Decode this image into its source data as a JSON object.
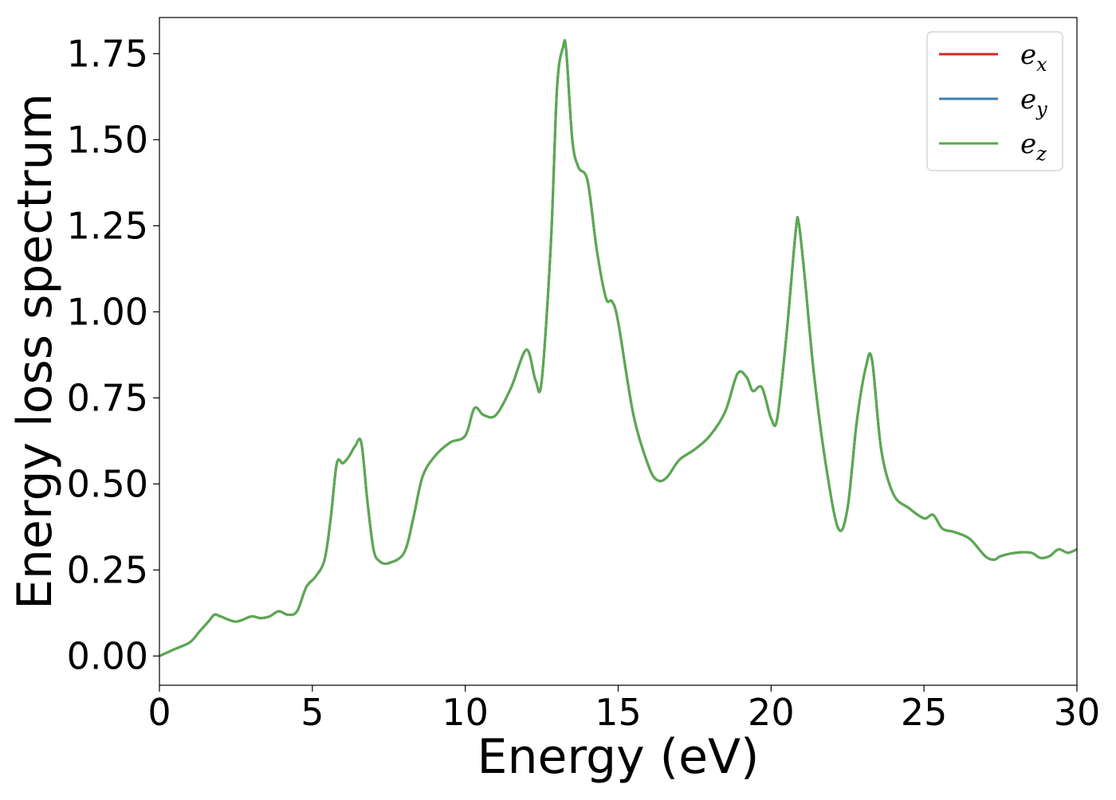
{
  "chart_data": {
    "type": "line",
    "title": "",
    "xlabel": "Energy (eV)",
    "ylabel": "Energy loss spectrum",
    "xlim": [
      0,
      30
    ],
    "ylim": [
      -0.085,
      1.855
    ],
    "xticks": [
      0,
      5,
      10,
      15,
      20,
      25,
      30
    ],
    "xtick_labels": [
      "0",
      "5",
      "10",
      "15",
      "20",
      "25",
      "30"
    ],
    "yticks": [
      0.0,
      0.25,
      0.5,
      0.75,
      1.0,
      1.25,
      1.5,
      1.75
    ],
    "ytick_labels": [
      "0.00",
      "0.25",
      "0.50",
      "0.75",
      "1.00",
      "1.25",
      "1.50",
      "1.75"
    ],
    "grid": false,
    "legend_position": "top-right",
    "x": [
      0,
      0.5,
      1.0,
      1.3,
      1.6,
      1.8,
      2.0,
      2.5,
      3.0,
      3.3,
      3.6,
      3.9,
      4.2,
      4.5,
      4.8,
      5.1,
      5.4,
      5.6,
      5.8,
      6.0,
      6.2,
      6.4,
      6.6,
      6.8,
      7.0,
      7.2,
      7.5,
      8.0,
      8.3,
      8.6,
      9.0,
      9.5,
      10.0,
      10.3,
      10.6,
      11.0,
      11.5,
      12.0,
      12.3,
      12.5,
      12.8,
      13.0,
      13.2,
      13.3,
      13.5,
      13.7,
      14.0,
      14.3,
      14.6,
      14.8,
      15.0,
      15.5,
      16.0,
      16.3,
      16.6,
      17.0,
      17.5,
      18.0,
      18.5,
      18.9,
      19.2,
      19.4,
      19.7,
      20.0,
      20.2,
      20.5,
      20.8,
      20.9,
      21.1,
      21.4,
      21.8,
      22.2,
      22.5,
      22.8,
      23.1,
      23.3,
      23.6,
      24.0,
      24.5,
      25.0,
      25.3,
      25.6,
      26.0,
      26.5,
      27.0,
      27.3,
      27.5,
      28.0,
      28.5,
      28.8,
      29.1,
      29.4,
      29.7,
      30.0
    ],
    "series": [
      {
        "name": "e_x",
        "label": "e",
        "subscript": "x",
        "color": "#d62728",
        "values": [
          0.0,
          0.02,
          0.04,
          0.07,
          0.1,
          0.12,
          0.115,
          0.1,
          0.115,
          0.11,
          0.115,
          0.13,
          0.12,
          0.13,
          0.2,
          0.23,
          0.28,
          0.4,
          0.56,
          0.56,
          0.58,
          0.61,
          0.62,
          0.45,
          0.31,
          0.275,
          0.27,
          0.3,
          0.4,
          0.52,
          0.58,
          0.62,
          0.64,
          0.72,
          0.7,
          0.7,
          0.78,
          0.89,
          0.8,
          0.8,
          1.2,
          1.65,
          1.77,
          1.76,
          1.5,
          1.42,
          1.38,
          1.18,
          1.04,
          1.03,
          0.97,
          0.7,
          0.55,
          0.51,
          0.52,
          0.57,
          0.6,
          0.64,
          0.71,
          0.82,
          0.81,
          0.77,
          0.78,
          0.69,
          0.69,
          0.93,
          1.23,
          1.26,
          1.1,
          0.82,
          0.55,
          0.37,
          0.43,
          0.68,
          0.84,
          0.86,
          0.6,
          0.47,
          0.43,
          0.4,
          0.41,
          0.37,
          0.36,
          0.34,
          0.29,
          0.28,
          0.29,
          0.3,
          0.3,
          0.285,
          0.29,
          0.31,
          0.3,
          0.31
        ]
      },
      {
        "name": "e_y",
        "label": "e",
        "subscript": "y",
        "color": "#3d7fb0",
        "values": [
          0.0,
          0.02,
          0.04,
          0.07,
          0.1,
          0.12,
          0.115,
          0.1,
          0.115,
          0.11,
          0.115,
          0.13,
          0.12,
          0.13,
          0.2,
          0.23,
          0.28,
          0.4,
          0.56,
          0.56,
          0.58,
          0.61,
          0.62,
          0.45,
          0.31,
          0.275,
          0.27,
          0.3,
          0.4,
          0.52,
          0.58,
          0.62,
          0.64,
          0.72,
          0.7,
          0.7,
          0.78,
          0.89,
          0.8,
          0.8,
          1.2,
          1.65,
          1.77,
          1.76,
          1.5,
          1.42,
          1.38,
          1.18,
          1.04,
          1.03,
          0.97,
          0.7,
          0.55,
          0.51,
          0.52,
          0.57,
          0.6,
          0.64,
          0.71,
          0.82,
          0.81,
          0.77,
          0.78,
          0.69,
          0.69,
          0.93,
          1.23,
          1.26,
          1.1,
          0.82,
          0.55,
          0.37,
          0.43,
          0.68,
          0.84,
          0.86,
          0.6,
          0.47,
          0.43,
          0.4,
          0.41,
          0.37,
          0.36,
          0.34,
          0.29,
          0.28,
          0.29,
          0.3,
          0.3,
          0.285,
          0.29,
          0.31,
          0.3,
          0.31
        ]
      },
      {
        "name": "e_z",
        "label": "e",
        "subscript": "z",
        "color": "#59aa4f",
        "values": [
          0.0,
          0.02,
          0.04,
          0.07,
          0.1,
          0.12,
          0.115,
          0.1,
          0.115,
          0.11,
          0.115,
          0.13,
          0.12,
          0.13,
          0.2,
          0.23,
          0.28,
          0.4,
          0.56,
          0.56,
          0.58,
          0.61,
          0.62,
          0.45,
          0.31,
          0.275,
          0.27,
          0.3,
          0.4,
          0.52,
          0.58,
          0.62,
          0.64,
          0.72,
          0.7,
          0.7,
          0.78,
          0.89,
          0.8,
          0.8,
          1.2,
          1.65,
          1.77,
          1.76,
          1.5,
          1.42,
          1.38,
          1.18,
          1.04,
          1.03,
          0.97,
          0.7,
          0.55,
          0.51,
          0.52,
          0.57,
          0.6,
          0.64,
          0.71,
          0.82,
          0.81,
          0.77,
          0.78,
          0.69,
          0.69,
          0.93,
          1.23,
          1.26,
          1.1,
          0.82,
          0.55,
          0.37,
          0.43,
          0.68,
          0.84,
          0.86,
          0.6,
          0.47,
          0.43,
          0.4,
          0.41,
          0.37,
          0.36,
          0.34,
          0.29,
          0.28,
          0.29,
          0.3,
          0.3,
          0.285,
          0.29,
          0.31,
          0.3,
          0.31
        ]
      }
    ]
  }
}
